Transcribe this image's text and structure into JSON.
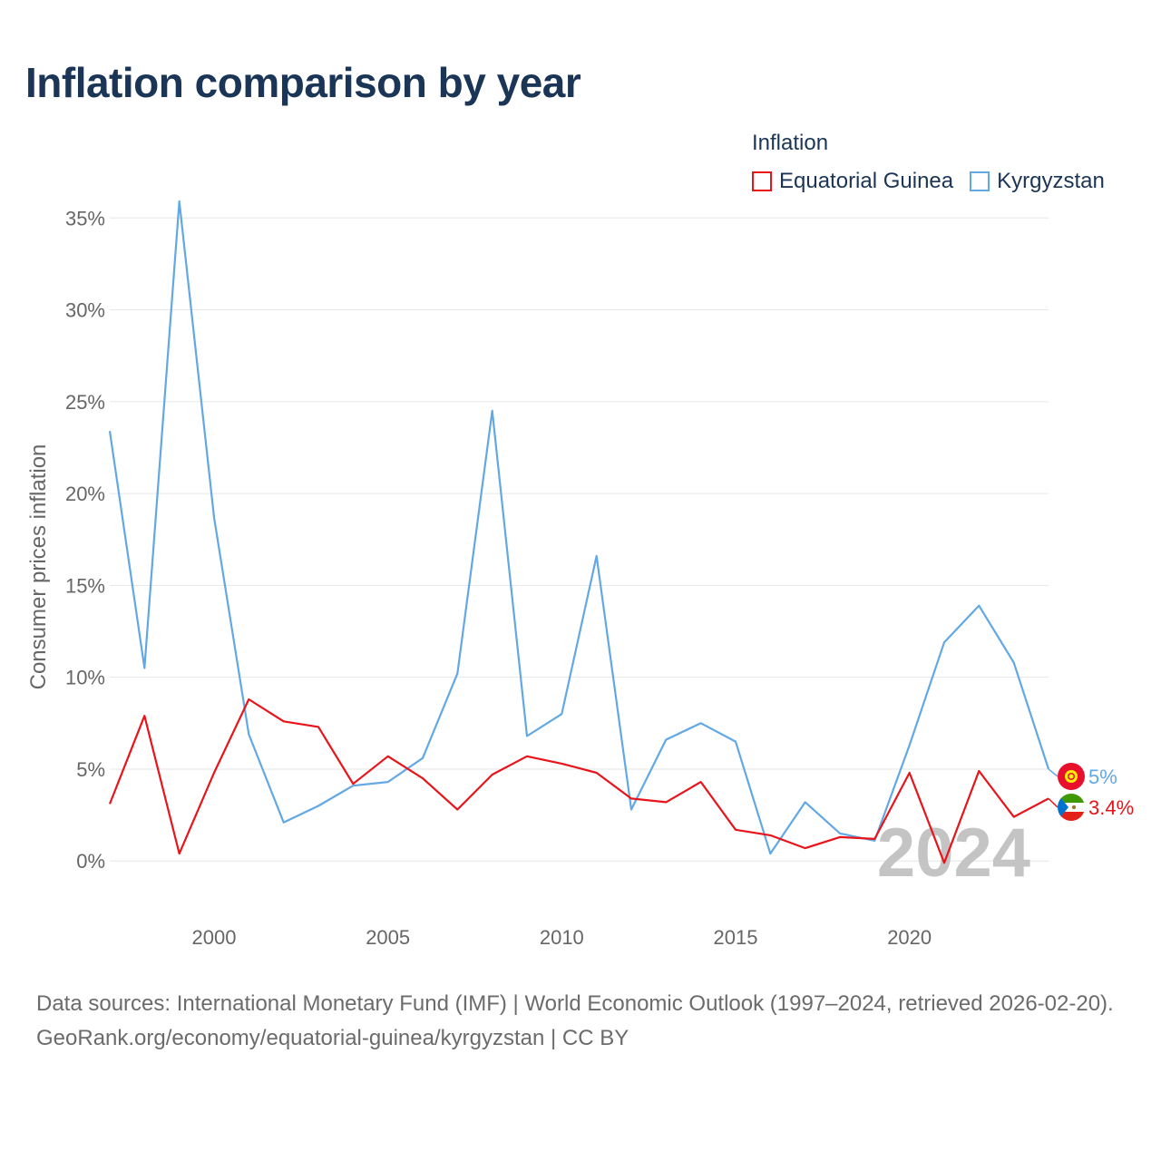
{
  "title": "Inflation comparison by year",
  "legend": {
    "title": "Inflation",
    "items": [
      {
        "label": "Equatorial Guinea",
        "color": "#e8141a"
      },
      {
        "label": "Kyrgyzstan",
        "color": "#62a8e5"
      }
    ]
  },
  "footer": {
    "line1": "Data sources: International Monetary Fund (IMF) | World Economic Outlook (1997–2024, retrieved 2026-02-20).",
    "line2": "GeoRank.org/economy/equatorial-guinea/kyrgyzstan | CC BY"
  },
  "chart_data": {
    "type": "line",
    "title": "Inflation comparison by year",
    "ylabel": "Consumer prices inflation",
    "xlabel": "",
    "xlim": [
      1997,
      2024
    ],
    "ylim": [
      -3,
      36
    ],
    "x_ticks": [
      2000,
      2005,
      2010,
      2015,
      2020
    ],
    "y_ticks": [
      0,
      5,
      10,
      15,
      20,
      25,
      30,
      35
    ],
    "y_tick_labels": [
      "0%",
      "5%",
      "10%",
      "15%",
      "20%",
      "25%",
      "30%",
      "35%"
    ],
    "watermark_year": "2024",
    "x": [
      1997,
      1998,
      1999,
      2000,
      2001,
      2002,
      2003,
      2004,
      2005,
      2006,
      2007,
      2008,
      2009,
      2010,
      2011,
      2012,
      2013,
      2014,
      2015,
      2016,
      2017,
      2018,
      2019,
      2020,
      2021,
      2022,
      2023,
      2024
    ],
    "series": [
      {
        "name": "Equatorial Guinea",
        "color": "#e8141a",
        "end_label": "3.4%",
        "flag": "equatorial-guinea-flag-icon",
        "values": [
          3.1,
          7.9,
          0.4,
          4.8,
          8.8,
          7.6,
          7.3,
          4.2,
          5.7,
          4.5,
          2.8,
          4.7,
          5.7,
          5.3,
          4.8,
          3.4,
          3.2,
          4.3,
          1.7,
          1.4,
          0.7,
          1.3,
          1.2,
          4.8,
          -0.1,
          4.9,
          2.4,
          3.4
        ]
      },
      {
        "name": "Kyrgyzstan",
        "color": "#62a8e5",
        "end_label": "5%",
        "flag": "kyrgyzstan-flag-icon",
        "values": [
          23.4,
          10.5,
          35.9,
          18.7,
          6.9,
          2.1,
          3.0,
          4.1,
          4.3,
          5.6,
          10.2,
          24.5,
          6.8,
          8.0,
          16.6,
          2.8,
          6.6,
          7.5,
          6.5,
          0.4,
          3.2,
          1.5,
          1.1,
          6.3,
          11.9,
          13.9,
          10.8,
          5.0
        ]
      }
    ]
  }
}
